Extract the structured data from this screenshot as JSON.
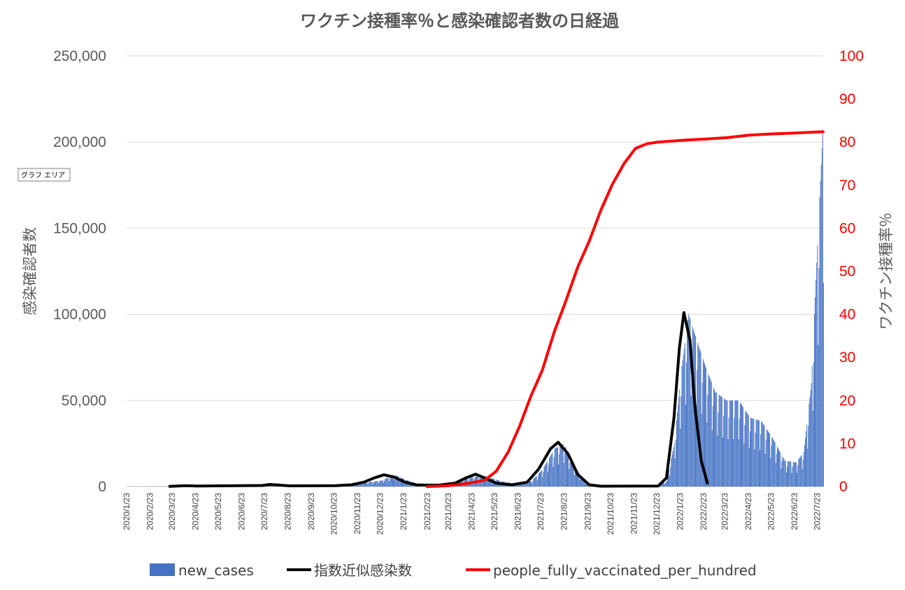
{
  "chart_data": {
    "type": "bar+line",
    "title": "ワクチン接種率％と感染確認者数の日経過",
    "tag": "グラフ エリア",
    "ylabel_left": "感染確認者数",
    "ylabel_right": "ワクチン接種率％",
    "ylim_left": [
      0,
      250000
    ],
    "ylim_right": [
      0,
      100
    ],
    "yticks_left": [
      "0",
      "50,000",
      "100,000",
      "150,000",
      "200,000",
      "250,000"
    ],
    "yticks_right": [
      "0",
      "10",
      "20",
      "30",
      "40",
      "50",
      "60",
      "70",
      "80",
      "90",
      "100"
    ],
    "x_start": "2020/1/23",
    "x_end": "2022/7/31",
    "x_ticks": [
      "2020/1/23",
      "2020/2/23",
      "2020/3/23",
      "2020/4/23",
      "2020/5/23",
      "2020/6/23",
      "2020/7/23",
      "2020/8/23",
      "2020/9/23",
      "2020/10/23",
      "2020/11/23",
      "2020/12/23",
      "2021/1/23",
      "2021/2/23",
      "2021/3/23",
      "2021/4/23",
      "2021/5/23",
      "2021/6/23",
      "2021/7/23",
      "2021/8/23",
      "2021/9/23",
      "2021/10/23",
      "2021/11/23",
      "2021/12/23",
      "2022/1/23",
      "2022/2/23",
      "2022/3/23",
      "2022/4/23",
      "2022/5/23",
      "2022/6/23",
      "2022/7/23"
    ],
    "grid": true,
    "legend_position": "bottom",
    "colors": {
      "new_cases": "#4472c4",
      "fit": "#000000",
      "vaccinated": "#ff0000"
    },
    "series": [
      {
        "name": "new_cases",
        "kind": "bar",
        "axis": "left",
        "points": [
          [
            "2020/1/23",
            0
          ],
          [
            "2020/3/20",
            100
          ],
          [
            "2020/4/12",
            600
          ],
          [
            "2020/5/10",
            100
          ],
          [
            "2020/6/20",
            100
          ],
          [
            "2020/7/15",
            600
          ],
          [
            "2020/8/5",
            1500
          ],
          [
            "2020/8/25",
            800
          ],
          [
            "2020/9/20",
            500
          ],
          [
            "2020/10/20",
            600
          ],
          [
            "2020/11/15",
            1800
          ],
          [
            "2020/12/5",
            2500
          ],
          [
            "2020/12/25",
            3500
          ],
          [
            "2021/1/10",
            7000
          ],
          [
            "2021/1/25",
            4000
          ],
          [
            "2021/2/10",
            1500
          ],
          [
            "2021/3/5",
            1100
          ],
          [
            "2021/3/25",
            1800
          ],
          [
            "2021/4/15",
            4500
          ],
          [
            "2021/5/5",
            6500
          ],
          [
            "2021/5/15",
            5500
          ],
          [
            "2021/6/1",
            3000
          ],
          [
            "2021/6/20",
            1500
          ],
          [
            "2021/7/10",
            3000
          ],
          [
            "2021/7/25",
            10000
          ],
          [
            "2021/8/10",
            22000
          ],
          [
            "2021/8/22",
            25000
          ],
          [
            "2021/9/5",
            12000
          ],
          [
            "2021/9/20",
            2000
          ],
          [
            "2021/10/10",
            400
          ],
          [
            "2021/11/15",
            150
          ],
          [
            "2021/12/20",
            300
          ],
          [
            "2022/1/5",
            3000
          ],
          [
            "2022/1/15",
            25000
          ],
          [
            "2022/1/25",
            70000
          ],
          [
            "2022/2/3",
            100000
          ],
          [
            "2022/2/10",
            90000
          ],
          [
            "2022/2/25",
            70000
          ],
          [
            "2022/3/10",
            55000
          ],
          [
            "2022/3/25",
            50000
          ],
          [
            "2022/4/10",
            50000
          ],
          [
            "2022/4/25",
            40000
          ],
          [
            "2022/5/10",
            38000
          ],
          [
            "2022/5/25",
            28000
          ],
          [
            "2022/6/10",
            15000
          ],
          [
            "2022/6/25",
            14000
          ],
          [
            "2022/7/5",
            20000
          ],
          [
            "2022/7/15",
            60000
          ],
          [
            "2022/7/23",
            140000
          ],
          [
            "2022/7/31",
            215000
          ]
        ]
      },
      {
        "name": "指数近似感染数",
        "kind": "line",
        "axis": "left",
        "points": [
          [
            "2020/3/20",
            100
          ],
          [
            "2020/4/10",
            500
          ],
          [
            "2020/4/25",
            300
          ],
          [
            "2020/7/20",
            600
          ],
          [
            "2020/7/30",
            1200
          ],
          [
            "2020/8/10",
            900
          ],
          [
            "2020/8/25",
            400
          ],
          [
            "2020/10/25",
            500
          ],
          [
            "2020/11/15",
            1000
          ],
          [
            "2020/12/1",
            2500
          ],
          [
            "2020/12/15",
            5000
          ],
          [
            "2020/12/28",
            6800
          ],
          [
            "2021/1/10",
            5500
          ],
          [
            "2021/1/25",
            2500
          ],
          [
            "2021/2/10",
            900
          ],
          [
            "2021/3/10",
            800
          ],
          [
            "2021/4/1",
            2000
          ],
          [
            "2021/4/15",
            5000
          ],
          [
            "2021/4/28",
            7200
          ],
          [
            "2021/5/10",
            5000
          ],
          [
            "2021/5/25",
            2000
          ],
          [
            "2021/6/15",
            1000
          ],
          [
            "2021/7/5",
            2500
          ],
          [
            "2021/7/20",
            10000
          ],
          [
            "2021/8/5",
            22000
          ],
          [
            "2021/8/15",
            25700
          ],
          [
            "2021/8/28",
            19000
          ],
          [
            "2021/9/10",
            7000
          ],
          [
            "2021/9/25",
            1000
          ],
          [
            "2021/10/10",
            200
          ],
          [
            "2021/12/25",
            300
          ],
          [
            "2022/1/5",
            5000
          ],
          [
            "2022/1/15",
            40000
          ],
          [
            "2022/1/22",
            80000
          ],
          [
            "2022/1/28",
            101000
          ],
          [
            "2022/2/5",
            85000
          ],
          [
            "2022/2/12",
            45000
          ],
          [
            "2022/2/20",
            15000
          ],
          [
            "2022/2/28",
            2000
          ]
        ]
      },
      {
        "name": "people_fully_vaccinated_per_hundred",
        "kind": "line",
        "axis": "right",
        "points": [
          [
            "2021/2/23",
            0
          ],
          [
            "2021/3/23",
            0.2
          ],
          [
            "2021/4/20",
            0.8
          ],
          [
            "2021/5/10",
            1.5
          ],
          [
            "2021/5/25",
            3.5
          ],
          [
            "2021/6/10",
            8
          ],
          [
            "2021/6/25",
            14
          ],
          [
            "2021/7/10",
            21
          ],
          [
            "2021/7/25",
            27
          ],
          [
            "2021/8/10",
            36
          ],
          [
            "2021/8/25",
            43
          ],
          [
            "2021/9/10",
            51
          ],
          [
            "2021/9/25",
            57
          ],
          [
            "2021/10/10",
            64
          ],
          [
            "2021/10/25",
            70
          ],
          [
            "2021/11/10",
            75
          ],
          [
            "2021/11/25",
            78.5
          ],
          [
            "2021/12/10",
            79.6
          ],
          [
            "2021/12/25",
            80
          ],
          [
            "2022/1/25",
            80.4
          ],
          [
            "2022/2/25",
            80.7
          ],
          [
            "2022/3/25",
            81
          ],
          [
            "2022/4/25",
            81.6
          ],
          [
            "2022/5/25",
            81.9
          ],
          [
            "2022/6/25",
            82.1
          ],
          [
            "2022/7/31",
            82.4
          ]
        ]
      }
    ]
  }
}
